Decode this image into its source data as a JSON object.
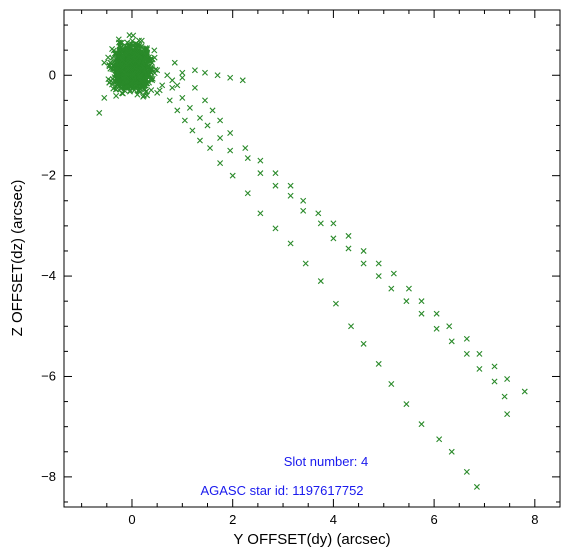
{
  "chart_data": {
    "type": "scatter",
    "title": "",
    "xlabel": "Y OFFSET(dy) (arcsec)",
    "ylabel": "Z OFFSET(dz) (arcsec)",
    "xlim": [
      -1.35,
      8.5
    ],
    "ylim": [
      -8.6,
      1.3
    ],
    "xticks": [
      0,
      2,
      4,
      6,
      8
    ],
    "yticks": [
      -8,
      -6,
      -4,
      -2,
      0
    ],
    "marker": "x",
    "grid": false,
    "colors": {
      "points": "#2a8a2a",
      "annotation": "#1a1aee",
      "axis": "#000000"
    },
    "annotations": [
      {
        "text": "Slot number: 4"
      },
      {
        "text": "AGASC star id: 1197617752"
      }
    ],
    "series": [
      {
        "values_note": "",
        "cluster": {
          "center": [
            0.0,
            0.15
          ],
          "spread": [
            0.18,
            0.22
          ]
        },
        "points": [
          [
            -0.55,
            0.25
          ],
          [
            -0.45,
            -0.15
          ],
          [
            -0.65,
            -0.75
          ],
          [
            -0.55,
            -0.45
          ],
          [
            -0.3,
            0.45
          ],
          [
            -0.2,
            0.65
          ],
          [
            -0.05,
            0.8
          ],
          [
            0.15,
            0.6
          ],
          [
            0.3,
            0.45
          ],
          [
            0.45,
            0.35
          ],
          [
            0.5,
            0.1
          ],
          [
            0.4,
            -0.1
          ],
          [
            0.25,
            -0.2
          ],
          [
            0.05,
            -0.3
          ],
          [
            -0.15,
            -0.25
          ],
          [
            -0.3,
            -0.05
          ],
          [
            0.6,
            -0.2
          ],
          [
            0.7,
            0.0
          ],
          [
            0.8,
            -0.1
          ],
          [
            0.9,
            -0.2
          ],
          [
            1.0,
            0.05
          ],
          [
            0.85,
            0.25
          ],
          [
            0.3,
            -0.4
          ],
          [
            0.5,
            -0.35
          ],
          [
            1.25,
            0.1
          ],
          [
            1.45,
            0.05
          ],
          [
            1.7,
            0.0
          ],
          [
            1.95,
            -0.05
          ],
          [
            2.2,
            -0.1
          ],
          [
            1.0,
            -0.05
          ],
          [
            1.25,
            -0.25
          ],
          [
            1.45,
            -0.5
          ],
          [
            1.6,
            -0.7
          ],
          [
            1.75,
            -0.9
          ],
          [
            1.95,
            -1.15
          ],
          [
            2.25,
            -1.45
          ],
          [
            2.55,
            -1.7
          ],
          [
            2.85,
            -1.95
          ],
          [
            3.15,
            -2.2
          ],
          [
            3.4,
            -2.5
          ],
          [
            3.7,
            -2.75
          ],
          [
            4.0,
            -2.95
          ],
          [
            4.3,
            -3.2
          ],
          [
            4.6,
            -3.5
          ],
          [
            4.9,
            -3.75
          ],
          [
            5.2,
            -3.95
          ],
          [
            5.5,
            -4.25
          ],
          [
            5.75,
            -4.5
          ],
          [
            6.05,
            -4.75
          ],
          [
            6.3,
            -5.0
          ],
          [
            6.65,
            -5.25
          ],
          [
            6.9,
            -5.55
          ],
          [
            7.2,
            -5.8
          ],
          [
            7.45,
            -6.05
          ],
          [
            7.8,
            -6.3
          ],
          [
            0.8,
            -0.25
          ],
          [
            1.0,
            -0.45
          ],
          [
            1.15,
            -0.65
          ],
          [
            1.35,
            -0.85
          ],
          [
            1.5,
            -1.0
          ],
          [
            1.75,
            -1.25
          ],
          [
            1.95,
            -1.5
          ],
          [
            2.3,
            -1.65
          ],
          [
            2.55,
            -1.95
          ],
          [
            2.85,
            -2.2
          ],
          [
            3.15,
            -2.4
          ],
          [
            3.4,
            -2.7
          ],
          [
            3.75,
            -2.95
          ],
          [
            4.0,
            -3.25
          ],
          [
            4.3,
            -3.45
          ],
          [
            4.6,
            -3.75
          ],
          [
            4.9,
            -4.0
          ],
          [
            5.15,
            -4.25
          ],
          [
            5.45,
            -4.5
          ],
          [
            5.75,
            -4.75
          ],
          [
            6.05,
            -5.05
          ],
          [
            6.35,
            -5.3
          ],
          [
            6.65,
            -5.55
          ],
          [
            6.9,
            -5.85
          ],
          [
            7.2,
            -6.1
          ],
          [
            7.4,
            -6.4
          ],
          [
            7.45,
            -6.75
          ],
          [
            0.55,
            -0.3
          ],
          [
            0.75,
            -0.5
          ],
          [
            0.9,
            -0.7
          ],
          [
            1.05,
            -0.9
          ],
          [
            1.2,
            -1.1
          ],
          [
            1.35,
            -1.3
          ],
          [
            1.55,
            -1.45
          ],
          [
            1.75,
            -1.75
          ],
          [
            2.0,
            -2.0
          ],
          [
            2.3,
            -2.35
          ],
          [
            2.55,
            -2.75
          ],
          [
            2.85,
            -3.05
          ],
          [
            3.15,
            -3.35
          ],
          [
            3.45,
            -3.75
          ],
          [
            3.75,
            -4.1
          ],
          [
            4.05,
            -4.55
          ],
          [
            4.35,
            -5.0
          ],
          [
            4.6,
            -5.35
          ],
          [
            4.9,
            -5.75
          ],
          [
            5.15,
            -6.15
          ],
          [
            5.45,
            -6.55
          ],
          [
            5.75,
            -6.95
          ],
          [
            6.1,
            -7.25
          ],
          [
            6.35,
            -7.5
          ],
          [
            6.65,
            -7.9
          ],
          [
            6.85,
            -8.2
          ]
        ]
      }
    ]
  }
}
